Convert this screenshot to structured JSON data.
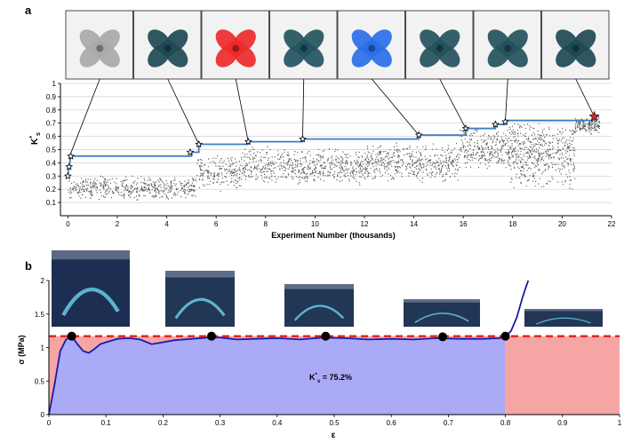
{
  "panels": {
    "a": {
      "label": "a"
    },
    "b": {
      "label": "b"
    }
  },
  "photos_a": [
    {
      "name": "gray-print",
      "color": "#a9a9a9"
    },
    {
      "name": "teal-print-1",
      "color": "#1f4a55"
    },
    {
      "name": "red-print",
      "color": "#ee2a2a"
    },
    {
      "name": "teal-print-2",
      "color": "#245460"
    },
    {
      "name": "blue-print",
      "color": "#2a6fe6"
    },
    {
      "name": "teal-print-3",
      "color": "#24525d"
    },
    {
      "name": "teal-print-4",
      "color": "#24525d"
    },
    {
      "name": "teal-print-5",
      "color": "#1f4a55"
    }
  ],
  "photos_b": [
    {
      "name": "compression-step-1",
      "color": "#1c2f52"
    },
    {
      "name": "compression-step-2",
      "color": "#223656"
    },
    {
      "name": "compression-step-3",
      "color": "#223656"
    },
    {
      "name": "compression-step-4",
      "color": "#223656"
    },
    {
      "name": "compression-step-5",
      "color": "#223656"
    }
  ],
  "colors": {
    "best_line": "#3b7fc4",
    "scatter": "#555555",
    "red_star": "#e32626",
    "curve": "#1a1aa8",
    "fill_blue": "#aaaaf7",
    "fill_red": "#f6a5a5",
    "dash_red": "#e02020"
  },
  "chart_data": [
    {
      "type": "scatter",
      "panel": "a",
      "xlabel": "Experiment Number (thousands)",
      "ylabel": "K*s",
      "ylabel_main": "K",
      "ylabel_sup": "*",
      "ylabel_sub": "s",
      "xlim": [
        -0.3,
        22
      ],
      "ylim": [
        0,
        1
      ],
      "xticks": [
        0,
        2,
        4,
        6,
        8,
        10,
        12,
        14,
        16,
        18,
        20,
        22
      ],
      "yticks": [
        0.1,
        0.2,
        0.3,
        0.4,
        0.5,
        0.6,
        0.7,
        0.8,
        0.9,
        1
      ],
      "ytick_labels": [
        "0.1",
        "0.2",
        "0.3",
        "0.4",
        "0.5",
        "0.6",
        "0.7",
        "0.8",
        "0.9",
        "1"
      ],
      "xtick_labels": [
        "0",
        "2",
        "4",
        "6",
        "8",
        "10",
        "12",
        "14",
        "16",
        "18",
        "20",
        "22"
      ],
      "grid": "horizontal",
      "series": [
        {
          "kind": "best-so-far-step",
          "x": [
            0.0,
            0.05,
            0.12,
            5.0,
            5.0,
            5.3,
            5.3,
            7.3,
            7.3,
            9.5,
            9.5,
            14.2,
            14.2,
            16.1,
            16.1,
            17.3,
            17.3,
            17.7,
            17.7,
            21.3,
            21.3,
            21.5
          ],
          "y": [
            0.3,
            0.37,
            0.45,
            0.45,
            0.48,
            0.48,
            0.54,
            0.54,
            0.56,
            0.56,
            0.58,
            0.58,
            0.61,
            0.61,
            0.66,
            0.66,
            0.69,
            0.69,
            0.72,
            0.72,
            0.75,
            0.75
          ]
        },
        {
          "kind": "stars",
          "x": [
            0.0,
            0.05,
            0.12,
            4.95,
            5.3,
            7.3,
            9.5,
            14.2,
            16.1,
            17.3,
            17.7
          ],
          "y": [
            0.3,
            0.37,
            0.45,
            0.48,
            0.54,
            0.56,
            0.58,
            0.61,
            0.66,
            0.69,
            0.71
          ]
        },
        {
          "kind": "best-star",
          "x": [
            21.3
          ],
          "y": [
            0.75
          ]
        },
        {
          "kind": "samples",
          "count_approx": 21000,
          "segments": [
            {
              "x": [
                0.0,
                5.2
              ],
              "y": [
                0.12,
                0.3
              ],
              "density": 0.55
            },
            {
              "x": [
                5.2,
                7.0
              ],
              "y": [
                0.18,
                0.46
              ],
              "density": 0.6
            },
            {
              "x": [
                7.0,
                9.0
              ],
              "y": [
                0.22,
                0.53
              ],
              "density": 0.65
            },
            {
              "x": [
                9.0,
                12.0
              ],
              "y": [
                0.22,
                0.52
              ],
              "density": 0.7
            },
            {
              "x": [
                12.0,
                15.8
              ],
              "y": [
                0.25,
                0.55
              ],
              "density": 0.7
            },
            {
              "x": [
                15.8,
                18.0
              ],
              "y": [
                0.35,
                0.66
              ],
              "density": 0.75
            },
            {
              "x": [
                18.0,
                20.5
              ],
              "y": [
                0.25,
                0.7
              ],
              "density": 0.55
            },
            {
              "x": [
                20.5,
                21.5
              ],
              "y": [
                0.62,
                0.75
              ],
              "density": 0.9
            }
          ]
        }
      ],
      "callouts": [
        {
          "photo": 0,
          "x": 0.05,
          "y": 0.44
        },
        {
          "photo": 1,
          "x": 5.3,
          "y": 0.54
        },
        {
          "photo": 2,
          "x": 7.3,
          "y": 0.56
        },
        {
          "photo": 3,
          "x": 9.5,
          "y": 0.58
        },
        {
          "photo": 4,
          "x": 14.2,
          "y": 0.61
        },
        {
          "photo": 5,
          "x": 16.1,
          "y": 0.66
        },
        {
          "photo": 6,
          "x": 17.7,
          "y": 0.71
        },
        {
          "photo": 7,
          "x": 21.3,
          "y": 0.75
        }
      ]
    },
    {
      "type": "line",
      "panel": "b",
      "xlabel": "ε",
      "ylabel": "σ (MPa)",
      "xlim": [
        0,
        1
      ],
      "ylim": [
        0,
        2
      ],
      "xticks": [
        0,
        0.1,
        0.2,
        0.3,
        0.4,
        0.5,
        0.6,
        0.7,
        0.8,
        0.9,
        1
      ],
      "xtick_labels": [
        "0",
        "0.1",
        "0.2",
        "0.3",
        "0.4",
        "0.5",
        "0.6",
        "0.7",
        "0.8",
        "0.9",
        "1"
      ],
      "yticks": [
        0,
        0.5,
        1,
        1.5,
        2
      ],
      "ytick_labels": [
        "0",
        "0.5",
        "1",
        "1.5",
        "2"
      ],
      "series": [
        {
          "kind": "stress-strain",
          "x": [
            0,
            0.01,
            0.02,
            0.03,
            0.04,
            0.05,
            0.06,
            0.07,
            0.08,
            0.09,
            0.1,
            0.12,
            0.14,
            0.16,
            0.18,
            0.2,
            0.22,
            0.25,
            0.28,
            0.3,
            0.33,
            0.36,
            0.4,
            0.44,
            0.48,
            0.52,
            0.56,
            0.6,
            0.64,
            0.68,
            0.72,
            0.76,
            0.79,
            0.8,
            0.81,
            0.82,
            0.83,
            0.835,
            0.84
          ],
          "y": [
            0,
            0.45,
            0.95,
            1.12,
            1.17,
            1.05,
            0.95,
            0.92,
            0.98,
            1.05,
            1.08,
            1.13,
            1.14,
            1.12,
            1.05,
            1.08,
            1.11,
            1.13,
            1.15,
            1.15,
            1.12,
            1.13,
            1.14,
            1.12,
            1.15,
            1.14,
            1.12,
            1.13,
            1.12,
            1.14,
            1.13,
            1.13,
            1.14,
            1.16,
            1.25,
            1.45,
            1.75,
            1.88,
            2.0
          ]
        },
        {
          "kind": "dashed-plateau",
          "y": 1.17
        },
        {
          "kind": "markers",
          "x": [
            0.04,
            0.285,
            0.485,
            0.69,
            0.8
          ],
          "y": [
            1.17,
            1.17,
            1.17,
            1.16,
            1.17
          ]
        }
      ],
      "regions": [
        {
          "kind": "shaded-blue",
          "x": [
            0,
            0.8
          ]
        },
        {
          "kind": "shaded-red-left",
          "x": [
            0,
            0.04
          ]
        },
        {
          "kind": "shaded-red-right",
          "x": [
            0.8,
            1.0
          ],
          "y": 1.17
        }
      ],
      "annotation": {
        "text_main": "K",
        "text_sup": "*",
        "text_sub": "s",
        "text_rest": " = 75.2%",
        "x": 0.49,
        "y": 0.63
      }
    }
  ]
}
